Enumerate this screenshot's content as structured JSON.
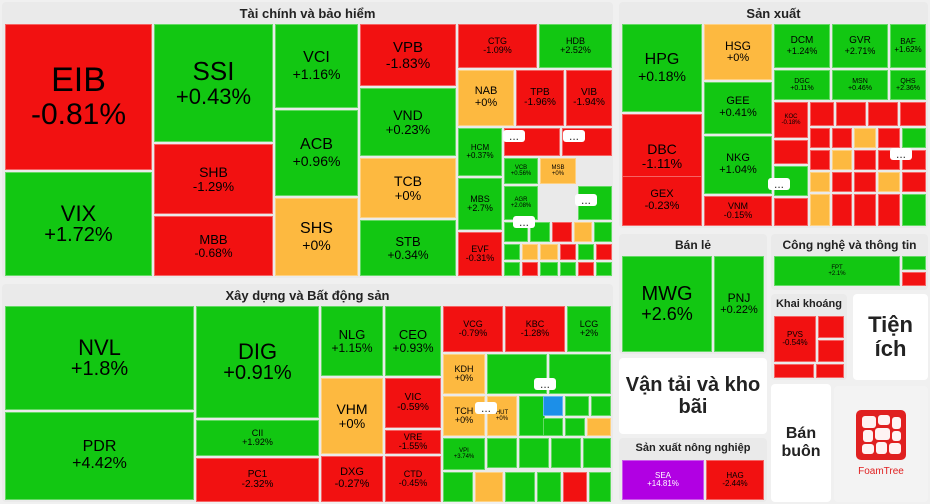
{
  "chart_data": {
    "type": "treemap",
    "colors": {
      "up": "#12c712",
      "down": "#f21111",
      "flat": "#fdb940",
      "ceiling": "#b100e3",
      "special": "#1c8fe8",
      "panel": "#eaeaea"
    },
    "groups": [
      {
        "name": "Tài chính và bảo hiểm",
        "tiles": [
          {
            "t": "EIB",
            "c": "-0.81%"
          },
          {
            "t": "VIX",
            "c": "+1.72%"
          },
          {
            "t": "SSI",
            "c": "+0.43%"
          },
          {
            "t": "SHB",
            "c": "-1.29%"
          },
          {
            "t": "MBB",
            "c": "-0.68%"
          },
          {
            "t": "VCI",
            "c": "+1.16%"
          },
          {
            "t": "ACB",
            "c": "+0.96%"
          },
          {
            "t": "SHS",
            "c": "+0%"
          },
          {
            "t": "VPB",
            "c": "-1.83%"
          },
          {
            "t": "VND",
            "c": "+0.23%"
          },
          {
            "t": "TCB",
            "c": "+0%"
          },
          {
            "t": "STB",
            "c": "+0.34%"
          },
          {
            "t": "CTG",
            "c": "-1.09%"
          },
          {
            "t": "HDB",
            "c": "+2.52%"
          },
          {
            "t": "NAB",
            "c": "+0%"
          },
          {
            "t": "TPB",
            "c": "-1.96%"
          },
          {
            "t": "VIB",
            "c": "-1.94%"
          },
          {
            "t": "HCM",
            "c": "+0.37%"
          },
          {
            "t": "MBS",
            "c": "+2.7%"
          },
          {
            "t": "EVF",
            "c": "-0.31%"
          },
          {
            "t": "VCB",
            "c": "+0.56%"
          },
          {
            "t": "MSB",
            "c": "+0%"
          },
          {
            "t": "AGR",
            "c": "+2.08%"
          }
        ]
      },
      {
        "name": "Xây dựng và Bất động sản",
        "tiles": [
          {
            "t": "NVL",
            "c": "+1.8%"
          },
          {
            "t": "PDR",
            "c": "+4.42%"
          },
          {
            "t": "DIG",
            "c": "+0.91%"
          },
          {
            "t": "CII",
            "c": "+1.92%"
          },
          {
            "t": "PC1",
            "c": "-2.32%"
          },
          {
            "t": "NLG",
            "c": "+1.15%"
          },
          {
            "t": "CEO",
            "c": "+0.93%"
          },
          {
            "t": "VHM",
            "c": "+0%"
          },
          {
            "t": "VIC",
            "c": "-0.59%"
          },
          {
            "t": "VRE",
            "c": "-1.55%"
          },
          {
            "t": "DXG",
            "c": "-0.27%"
          },
          {
            "t": "CTD",
            "c": "-0.45%"
          },
          {
            "t": "VCG",
            "c": "-0.79%"
          },
          {
            "t": "KBC",
            "c": "-1.28%"
          },
          {
            "t": "LCG",
            "c": "+2%"
          },
          {
            "t": "KDH",
            "c": "+0%"
          },
          {
            "t": "TCH",
            "c": "+0%"
          },
          {
            "t": "VPI",
            "c": "+3.74%"
          },
          {
            "t": "HUT",
            "c": "+0%"
          }
        ]
      },
      {
        "name": "Sản xuất",
        "tiles": [
          {
            "t": "HPG",
            "c": "+0.18%"
          },
          {
            "t": "DBC",
            "c": "-1.11%"
          },
          {
            "t": "GEX",
            "c": "-0.23%"
          },
          {
            "t": "HSG",
            "c": "+0%"
          },
          {
            "t": "GEE",
            "c": "+0.41%"
          },
          {
            "t": "NKG",
            "c": "+1.04%"
          },
          {
            "t": "VNM",
            "c": "-0.15%"
          },
          {
            "t": "DCM",
            "c": "+1.24%"
          },
          {
            "t": "GVR",
            "c": "+2.71%"
          },
          {
            "t": "BAF",
            "c": "+1.62%"
          },
          {
            "t": "DGC",
            "c": "+0.11%"
          },
          {
            "t": "MSN",
            "c": "+0.46%"
          },
          {
            "t": "QHS",
            "c": "+2.36%"
          },
          {
            "t": "KOC",
            "c": "-0.18%"
          }
        ]
      },
      {
        "name": "Bán lẻ",
        "tiles": [
          {
            "t": "MWG",
            "c": "+2.6%"
          },
          {
            "t": "PNJ",
            "c": "+0.22%"
          }
        ]
      },
      {
        "name": "Công nghệ và thông tin",
        "tiles": [
          {
            "t": "FPT",
            "c": "+2.1%"
          }
        ]
      },
      {
        "name": "Khai khoáng",
        "tiles": [
          {
            "t": "PVS",
            "c": "-0.54%"
          }
        ]
      },
      {
        "name": "Tiện ích",
        "tiles": []
      },
      {
        "name": "Vận tải và kho bãi",
        "tiles": []
      },
      {
        "name": "Bán buôn",
        "tiles": []
      },
      {
        "name": "Sản xuất nông nghiệp",
        "tiles": [
          {
            "t": "SEA",
            "c": "+14.81%"
          },
          {
            "t": "HAG",
            "c": "-2.44%"
          }
        ]
      }
    ],
    "more_label": "...",
    "logo_text": "FoamTree"
  }
}
